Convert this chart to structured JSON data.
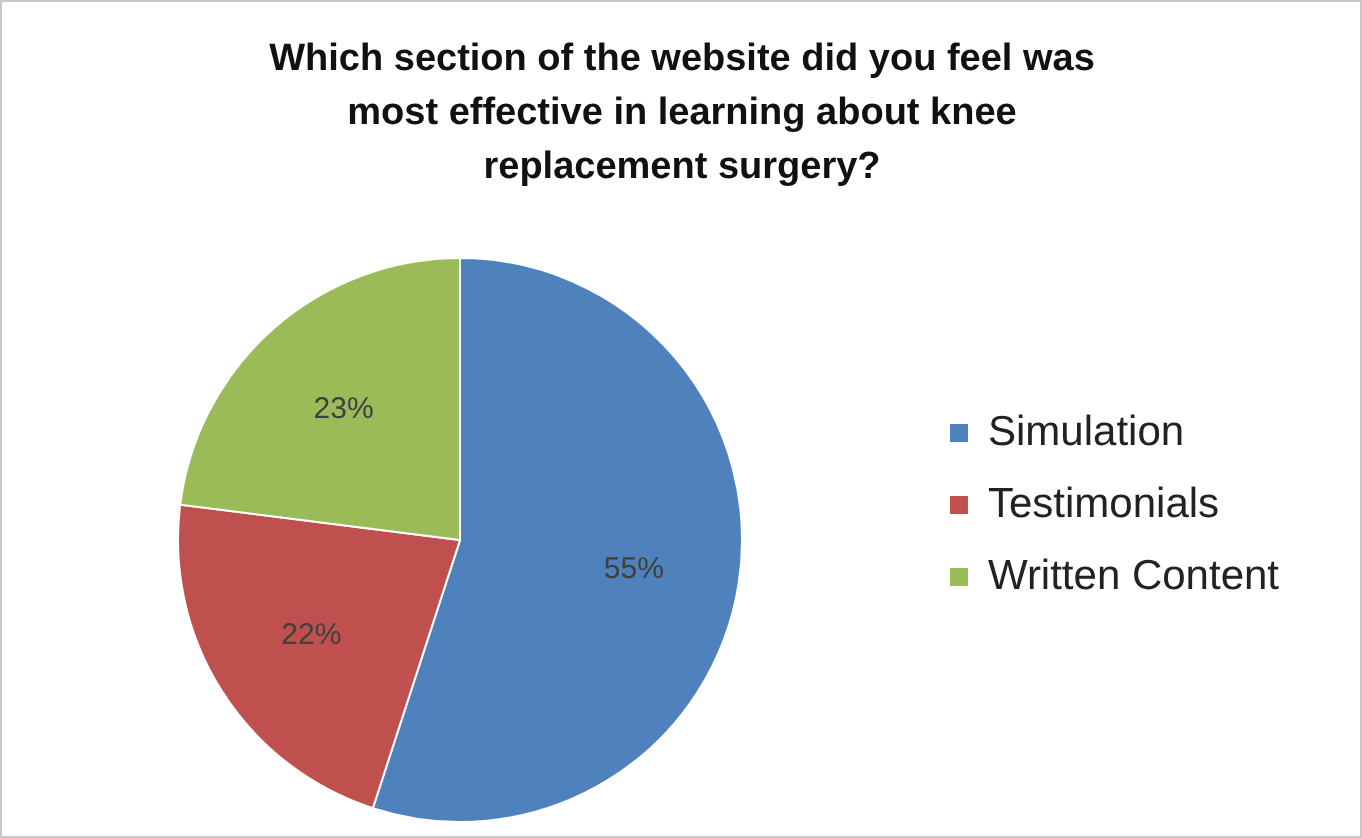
{
  "chart_data": {
    "type": "pie",
    "title": "Which section of the website did you feel was most effective in learning about knee replacement surgery?",
    "categories": [
      "Simulation",
      "Testimonials",
      "Written Content"
    ],
    "values": [
      55,
      22,
      23
    ],
    "value_labels": [
      "55%",
      "22%",
      "23%"
    ],
    "colors": [
      "#4f81bd",
      "#c0504d",
      "#9bbb59"
    ],
    "legend": "right"
  }
}
